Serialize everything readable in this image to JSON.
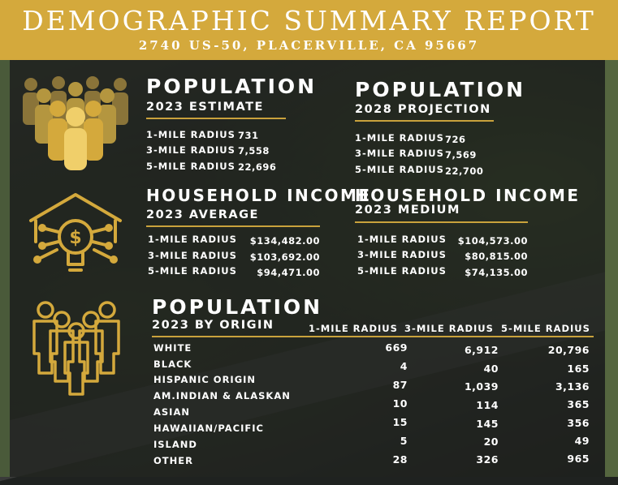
{
  "header": {
    "title": "DEMOGRAPHIC SUMMARY REPORT",
    "address": "2740 US-50, PLACERVILLE, CA 95667"
  },
  "colors": {
    "gold": "#d4a93c",
    "rule": "#c9a23c"
  },
  "icons": {
    "population": "people-group-icon",
    "income": "house-lightbulb-dollar-icon",
    "origin": "people-crowd-icon"
  },
  "pop2023": {
    "title": "POPULATION",
    "subtitle": "2023 ESTIMATE",
    "rows": [
      {
        "label": "1-MILE RADIUS",
        "value": "731"
      },
      {
        "label": "3-MILE RADIUS",
        "value": "7,558"
      },
      {
        "label": "5-MILE RADIUS",
        "value": "22,696"
      }
    ]
  },
  "pop2028": {
    "title": "POPULATION",
    "subtitle": "2028 PROJECTION",
    "rows": [
      {
        "label": "1-MILE RADIUS",
        "value": "726"
      },
      {
        "label": "3-MILE RADIUS",
        "value": "7,569"
      },
      {
        "label": "5-MILE RADIUS",
        "value": "22,700"
      }
    ]
  },
  "incAvg": {
    "title": "HOUSEHOLD INCOME",
    "subtitle": "2023 AVERAGE",
    "rows": [
      {
        "label": "1-MILE RADIUS",
        "value": "$134,482.00"
      },
      {
        "label": "3-MILE RADIUS",
        "value": "$103,692.00"
      },
      {
        "label": "5-MILE RADIUS",
        "value": "$94,471.00"
      }
    ]
  },
  "incMed": {
    "title": "HOUSEHOLD INCOME",
    "subtitle": "2023 MEDIUM",
    "rows": [
      {
        "label": "1-MILE RADIUS",
        "value": "$104,573.00"
      },
      {
        "label": "3-MILE RADIUS",
        "value": "$80,815.00"
      },
      {
        "label": "5-MILE RADIUS",
        "value": "$74,135.00"
      }
    ]
  },
  "origin": {
    "title": "POPULATION",
    "subtitle": "2023 BY ORIGIN",
    "columns": [
      "1-MILE RADIUS",
      "3-MILE RADIUS",
      "5-MILE RADIUS"
    ],
    "labels": [
      "WHITE",
      "BLACK",
      "HISPANIC ORIGIN",
      "AM.INDIAN & ALASKAN",
      "ASIAN",
      "HAWAIIAN/PACIFIC",
      "ISLAND",
      "OTHER"
    ],
    "col1": [
      "669",
      "4",
      "87",
      "10",
      "15",
      "5",
      "28"
    ],
    "col2": [
      "6,912",
      "40",
      "1,039",
      "114",
      "145",
      "20",
      "326"
    ],
    "col3": [
      "20,796",
      "165",
      "3,136",
      "365",
      "356",
      "49",
      "965"
    ]
  }
}
